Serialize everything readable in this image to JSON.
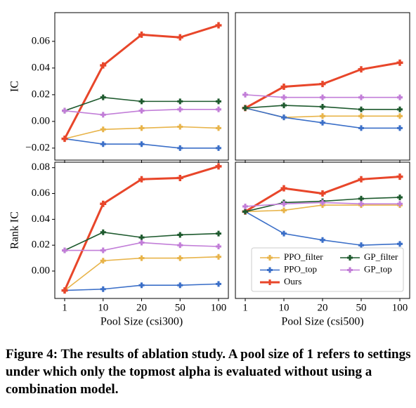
{
  "chart_data": [
    {
      "type": "line",
      "y_label": "IC",
      "ylim": [
        -0.029,
        0.0815
      ],
      "yticks": [
        {
          "value": -0.02,
          "label": "−0.02"
        },
        {
          "value": 0,
          "label": "0.00"
        },
        0.02,
        0.04,
        0.06
      ],
      "series": [
        {
          "name": "PPO_filter",
          "color": "#e8b44a",
          "values": [
            -0.013,
            -0.006,
            -0.005,
            -0.004,
            -0.005
          ]
        },
        {
          "name": "PPO_top",
          "color": "#3b6fc8",
          "values": [
            -0.013,
            -0.017,
            -0.017,
            -0.02,
            -0.02
          ]
        },
        {
          "name": "Ours",
          "color": "#e8462a",
          "values": [
            -0.013,
            0.042,
            0.065,
            0.063,
            0.072
          ]
        },
        {
          "name": "GP_filter",
          "color": "#1e5a2e",
          "values": [
            0.008,
            0.018,
            0.015,
            0.015,
            0.015
          ]
        },
        {
          "name": "GP_top",
          "color": "#c27ed8",
          "values": [
            0.008,
            0.005,
            0.008,
            0.009,
            0.009
          ]
        }
      ]
    },
    {
      "type": "line",
      "ylim": [
        -0.029,
        0.0815
      ],
      "series": [
        {
          "name": "PPO_filter",
          "color": "#e8b44a",
          "values": [
            0.01,
            0.003,
            0.004,
            0.004,
            0.004
          ]
        },
        {
          "name": "PPO_top",
          "color": "#3b6fc8",
          "values": [
            0.01,
            0.003,
            -0.001,
            -0.005,
            -0.005
          ]
        },
        {
          "name": "Ours",
          "color": "#e8462a",
          "values": [
            0.01,
            0.026,
            0.028,
            0.039,
            0.044
          ]
        },
        {
          "name": "GP_filter",
          "color": "#1e5a2e",
          "values": [
            0.01,
            0.012,
            0.011,
            0.009,
            0.009
          ]
        },
        {
          "name": "GP_top",
          "color": "#c27ed8",
          "values": [
            0.02,
            0.018,
            0.018,
            0.018,
            0.018
          ]
        }
      ]
    },
    {
      "type": "line",
      "y_label": "Rank IC",
      "x_label": "Pool Size (csi300)",
      "categories": [
        "1",
        "10",
        "20",
        "50",
        "100"
      ],
      "ylim": [
        -0.0212,
        0.0842
      ],
      "yticks": [
        {
          "value": 0,
          "label": "0.00"
        },
        0.02,
        0.04,
        0.06,
        0.08
      ],
      "series": [
        {
          "name": "PPO_filter",
          "color": "#e8b44a",
          "values": [
            -0.015,
            0.008,
            0.01,
            0.01,
            0.011
          ]
        },
        {
          "name": "PPO_top",
          "color": "#3b6fc8",
          "values": [
            -0.015,
            -0.014,
            -0.011,
            -0.011,
            -0.01
          ]
        },
        {
          "name": "Ours",
          "color": "#e8462a",
          "values": [
            -0.015,
            0.052,
            0.071,
            0.072,
            0.081
          ]
        },
        {
          "name": "GP_filter",
          "color": "#1e5a2e",
          "values": [
            0.016,
            0.03,
            0.026,
            0.028,
            0.029
          ]
        },
        {
          "name": "GP_top",
          "color": "#c27ed8",
          "values": [
            0.016,
            0.016,
            0.022,
            0.02,
            0.019
          ]
        }
      ]
    },
    {
      "type": "line",
      "x_label": "Pool Size (csi500)",
      "categories": [
        "1",
        "10",
        "20",
        "50",
        "100"
      ],
      "ylim": [
        -0.0212,
        0.0842
      ],
      "legend": "lower right",
      "series": [
        {
          "name": "PPO_filter",
          "color": "#e8b44a",
          "values": [
            0.046,
            0.047,
            0.051,
            0.051,
            0.051
          ]
        },
        {
          "name": "PPO_top",
          "color": "#3b6fc8",
          "values": [
            0.046,
            0.029,
            0.024,
            0.02,
            0.021
          ]
        },
        {
          "name": "Ours",
          "color": "#e8462a",
          "values": [
            0.046,
            0.064,
            0.06,
            0.071,
            0.073
          ]
        },
        {
          "name": "GP_filter",
          "color": "#1e5a2e",
          "values": [
            0.046,
            0.053,
            0.054,
            0.056,
            0.057
          ]
        },
        {
          "name": "GP_top",
          "color": "#c27ed8",
          "values": [
            0.05,
            0.052,
            0.053,
            0.052,
            0.052
          ]
        }
      ]
    }
  ],
  "caption": "Figure 4: The results of ablation study. A pool size of 1 refers to settings under which only the topmost alpha is evaluated without using a combination model."
}
